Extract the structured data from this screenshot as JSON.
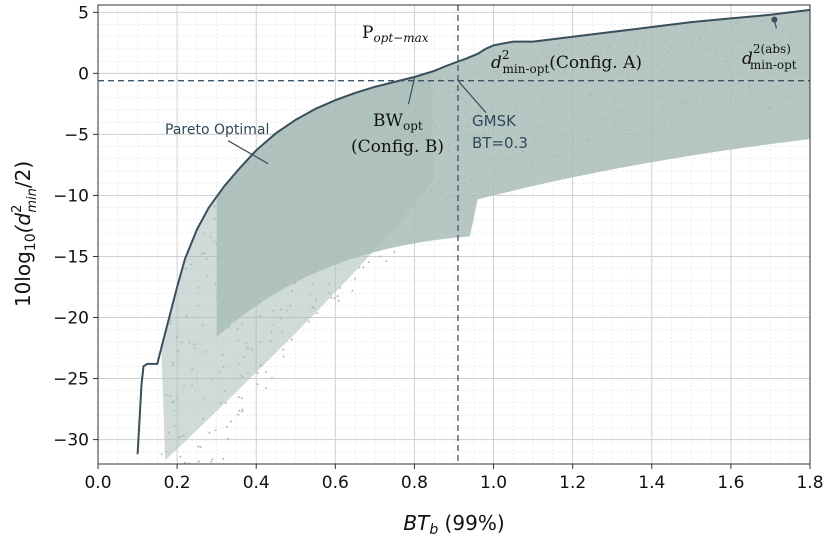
{
  "chart_data": {
    "type": "scatter",
    "title": "",
    "xlabel": "BT",
    "xlabel_sub": "b",
    "xlabel_suffix": " (99%)",
    "ylabel_prefix": "10log",
    "ylabel_sub10": "10",
    "ylabel_d": "(d",
    "ylabel_sup": "2",
    "ylabel_submin": "min",
    "ylabel_suffix": "/2)",
    "xlim": [
      0.0,
      1.8
    ],
    "ylim": [
      -32,
      5.6
    ],
    "xticks": [
      "0.0",
      "0.2",
      "0.4",
      "0.6",
      "0.8",
      "1.0",
      "1.2",
      "1.4",
      "1.6",
      "1.8"
    ],
    "yticks": [
      "5",
      "0",
      "−5",
      "−10",
      "−15",
      "−20",
      "−25",
      "−30"
    ],
    "grid": true,
    "colors": {
      "cloud": "#a9bdb9",
      "frontier": "#3a4e5c",
      "dash": "#3d5566",
      "grid": "#cfcfcf"
    },
    "pareto_frontier": [
      [
        0.1,
        -31.2
      ],
      [
        0.11,
        -25.5
      ],
      [
        0.115,
        -24.0
      ],
      [
        0.125,
        -23.8
      ],
      [
        0.15,
        -23.8
      ],
      [
        0.16,
        -22.5
      ],
      [
        0.18,
        -20.0
      ],
      [
        0.2,
        -17.5
      ],
      [
        0.22,
        -15.2
      ],
      [
        0.25,
        -12.8
      ],
      [
        0.28,
        -11.0
      ],
      [
        0.32,
        -9.2
      ],
      [
        0.36,
        -7.7
      ],
      [
        0.4,
        -6.3
      ],
      [
        0.45,
        -4.9
      ],
      [
        0.5,
        -3.8
      ],
      [
        0.55,
        -2.9
      ],
      [
        0.6,
        -2.2
      ],
      [
        0.65,
        -1.6
      ],
      [
        0.7,
        -1.1
      ],
      [
        0.75,
        -0.7
      ],
      [
        0.8,
        -0.3
      ],
      [
        0.85,
        0.2
      ],
      [
        0.88,
        0.6
      ],
      [
        0.9,
        0.85
      ],
      [
        0.93,
        1.2
      ],
      [
        0.96,
        1.6
      ],
      [
        0.98,
        2.0
      ],
      [
        1.0,
        2.3
      ],
      [
        1.05,
        2.6
      ],
      [
        1.1,
        2.6
      ],
      [
        1.2,
        3.0
      ],
      [
        1.3,
        3.4
      ],
      [
        1.4,
        3.8
      ],
      [
        1.5,
        4.2
      ],
      [
        1.6,
        4.5
      ],
      [
        1.7,
        4.8
      ],
      [
        1.8,
        5.2
      ]
    ],
    "reference_lines": {
      "vertical_x": 0.91,
      "horizontal_y": -0.6
    },
    "points": {
      "d2_abs": [
        1.71,
        4.4
      ],
      "bw_opt": [
        0.8,
        -0.4
      ],
      "d2_min_opt": [
        0.9,
        0.8
      ],
      "gmsk": [
        0.91,
        -0.6
      ],
      "pareto_label_target": [
        0.43,
        -7.4
      ]
    },
    "annotations": {
      "p_opt_max_main": "P",
      "p_opt_max_sub": "opt−max",
      "d2_min_opt_main": "d",
      "d2_min_opt_sup": "2",
      "d2_min_opt_sub": "min-opt",
      "d2_min_opt_tail": "(Config.  A)",
      "d2_abs_main": "d",
      "d2_abs_sup": "2(abs)",
      "d2_abs_sub": "min-opt",
      "bw_opt_main": "BW",
      "bw_opt_sub": "opt",
      "bw_opt_line2": "(Config.  B)",
      "gmsk_line1": "GMSK",
      "gmsk_line2": "BT=0.3",
      "pareto_label": "Pareto Optimal"
    }
  }
}
